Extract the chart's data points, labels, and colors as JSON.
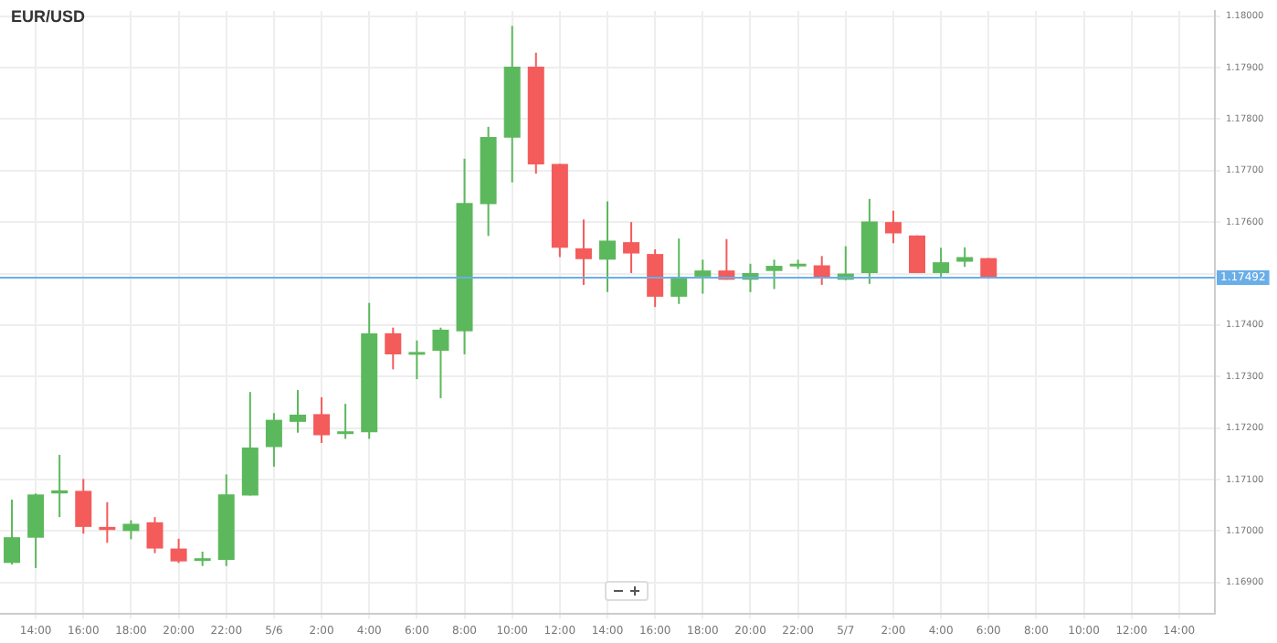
{
  "chart_data": {
    "type": "candlestick",
    "title": "EUR/USD",
    "categories": [
      null,
      "14:00",
      null,
      "16:00",
      null,
      "18:00",
      null,
      "20:00",
      null,
      "22:00",
      null,
      "5/6",
      null,
      "2:00",
      null,
      "4:00",
      null,
      "6:00",
      null,
      "8:00",
      null,
      "10:00",
      null,
      "12:00",
      null,
      "14:00",
      null,
      "16:00",
      null,
      "18:00",
      null,
      "20:00",
      null,
      "22:00",
      null,
      "5/7",
      null,
      "2:00",
      null,
      "4:00",
      null,
      "6:00",
      null,
      "8:00",
      null,
      "10:00",
      null,
      "12:00",
      null,
      "14:00",
      null
    ],
    "ohlc": [
      [
        1.16938,
        1.17061,
        1.16935,
        1.16988
      ],
      [
        1.16987,
        1.17073,
        1.16928,
        1.17071
      ],
      [
        1.17073,
        1.17148,
        1.17027,
        1.17079
      ],
      [
        1.17078,
        1.17101,
        1.16995,
        1.17008
      ],
      [
        1.17008,
        1.17056,
        1.16977,
        1.17002
      ],
      [
        1.17,
        1.17021,
        1.16984,
        1.17014
      ],
      [
        1.17017,
        1.17027,
        1.16957,
        1.16966
      ],
      [
        1.16966,
        1.16985,
        1.16938,
        1.16941
      ],
      [
        1.16942,
        1.1696,
        1.16932,
        1.16947
      ],
      [
        1.16944,
        1.1711,
        1.16932,
        1.17071
      ],
      [
        1.17069,
        1.1727,
        1.17069,
        1.17162
      ],
      [
        1.17163,
        1.17229,
        1.17125,
        1.17216
      ],
      [
        1.17212,
        1.17274,
        1.17191,
        1.17226
      ],
      [
        1.17227,
        1.1726,
        1.17171,
        1.17186
      ],
      [
        1.17189,
        1.17247,
        1.17179,
        1.17193
      ],
      [
        1.17192,
        1.17443,
        1.17179,
        1.17384
      ],
      [
        1.17384,
        1.17395,
        1.17314,
        1.17343
      ],
      [
        1.17344,
        1.1737,
        1.17295,
        1.17346
      ],
      [
        1.1735,
        1.17395,
        1.17258,
        1.17391
      ],
      [
        1.17388,
        1.17723,
        1.17343,
        1.17637
      ],
      [
        1.17635,
        1.17785,
        1.17573,
        1.17765
      ],
      [
        1.17764,
        1.17981,
        1.17677,
        1.17902
      ],
      [
        1.17902,
        1.17929,
        1.17694,
        1.17712
      ],
      [
        1.17713,
        1.17713,
        1.17532,
        1.1755
      ],
      [
        1.17549,
        1.17605,
        1.17478,
        1.17528
      ],
      [
        1.17527,
        1.1764,
        1.17464,
        1.17564
      ],
      [
        1.17561,
        1.176,
        1.17501,
        1.17539
      ],
      [
        1.17538,
        1.17547,
        1.17435,
        1.17455
      ],
      [
        1.17455,
        1.17568,
        1.17441,
        1.17494
      ],
      [
        1.17494,
        1.17527,
        1.17461,
        1.17506
      ],
      [
        1.17506,
        1.17567,
        1.17488,
        1.17488
      ],
      [
        1.17488,
        1.17519,
        1.17464,
        1.17501
      ],
      [
        1.17505,
        1.17527,
        1.1747,
        1.17515
      ],
      [
        1.17514,
        1.17527,
        1.17509,
        1.17519
      ],
      [
        1.17516,
        1.17534,
        1.17478,
        1.17492
      ],
      [
        1.17488,
        1.17553,
        1.17487,
        1.175
      ],
      [
        1.17501,
        1.17645,
        1.1748,
        1.17601
      ],
      [
        1.176,
        1.17622,
        1.17559,
        1.17578
      ],
      [
        1.17574,
        1.17574,
        1.17501,
        1.17501
      ],
      [
        1.17501,
        1.1755,
        1.17493,
        1.17522
      ],
      [
        1.17523,
        1.17551,
        1.17513,
        1.17532
      ],
      [
        1.1753,
        1.1753,
        1.1749,
        1.17492
      ],
      null,
      null,
      null,
      null,
      null,
      null,
      null,
      null,
      null
    ],
    "colors": [
      "#5cb85c",
      "#5cb85c",
      "#5cb85c",
      "#f45b5b",
      "#f45b5b",
      "#5cb85c",
      "#f45b5b",
      "#f45b5b",
      "#5cb85c",
      "#5cb85c",
      "#5cb85c",
      "#5cb85c",
      "#5cb85c",
      "#f45b5b",
      "#5cb85c",
      "#5cb85c",
      "#f45b5b",
      "#5cb85c",
      "#5cb85c",
      "#5cb85c",
      "#5cb85c",
      "#5cb85c",
      "#f45b5b",
      "#f45b5b",
      "#f45b5b",
      "#5cb85c",
      "#f45b5b",
      "#f45b5b",
      "#5cb85c",
      "#5cb85c",
      "#f45b5b",
      "#5cb85c",
      "#5cb85c",
      "#5cb85c",
      "#f45b5b",
      "#5cb85c",
      "#5cb85c",
      "#f45b5b",
      "#f45b5b",
      "#5cb85c",
      "#5cb85c",
      "#f45b5b",
      null,
      null,
      null,
      null,
      null,
      null,
      null,
      null,
      null
    ],
    "ylim": [
      1.1684,
      1.1801
    ],
    "yticks": [
      {
        "value": 1.169,
        "label": "1.16900"
      },
      {
        "value": 1.17,
        "label": "1.17000"
      },
      {
        "value": 1.171,
        "label": "1.17100"
      },
      {
        "value": 1.172,
        "label": "1.17200"
      },
      {
        "value": 1.173,
        "label": "1.17300"
      },
      {
        "value": 1.174,
        "label": "1.17400"
      },
      {
        "value": 1.175,
        "label": null
      },
      {
        "value": 1.176,
        "label": "1.17600"
      },
      {
        "value": 1.177,
        "label": "1.17700"
      },
      {
        "value": 1.178,
        "label": "1.17800"
      },
      {
        "value": 1.179,
        "label": "1.17900"
      },
      {
        "value": 1.18,
        "label": "1.18000"
      }
    ],
    "ref_lines": [
      {
        "axis": "y",
        "value": 1.17492,
        "label": "1.17492",
        "color": "#6aaee8"
      }
    ],
    "grid": true,
    "legend": false
  }
}
